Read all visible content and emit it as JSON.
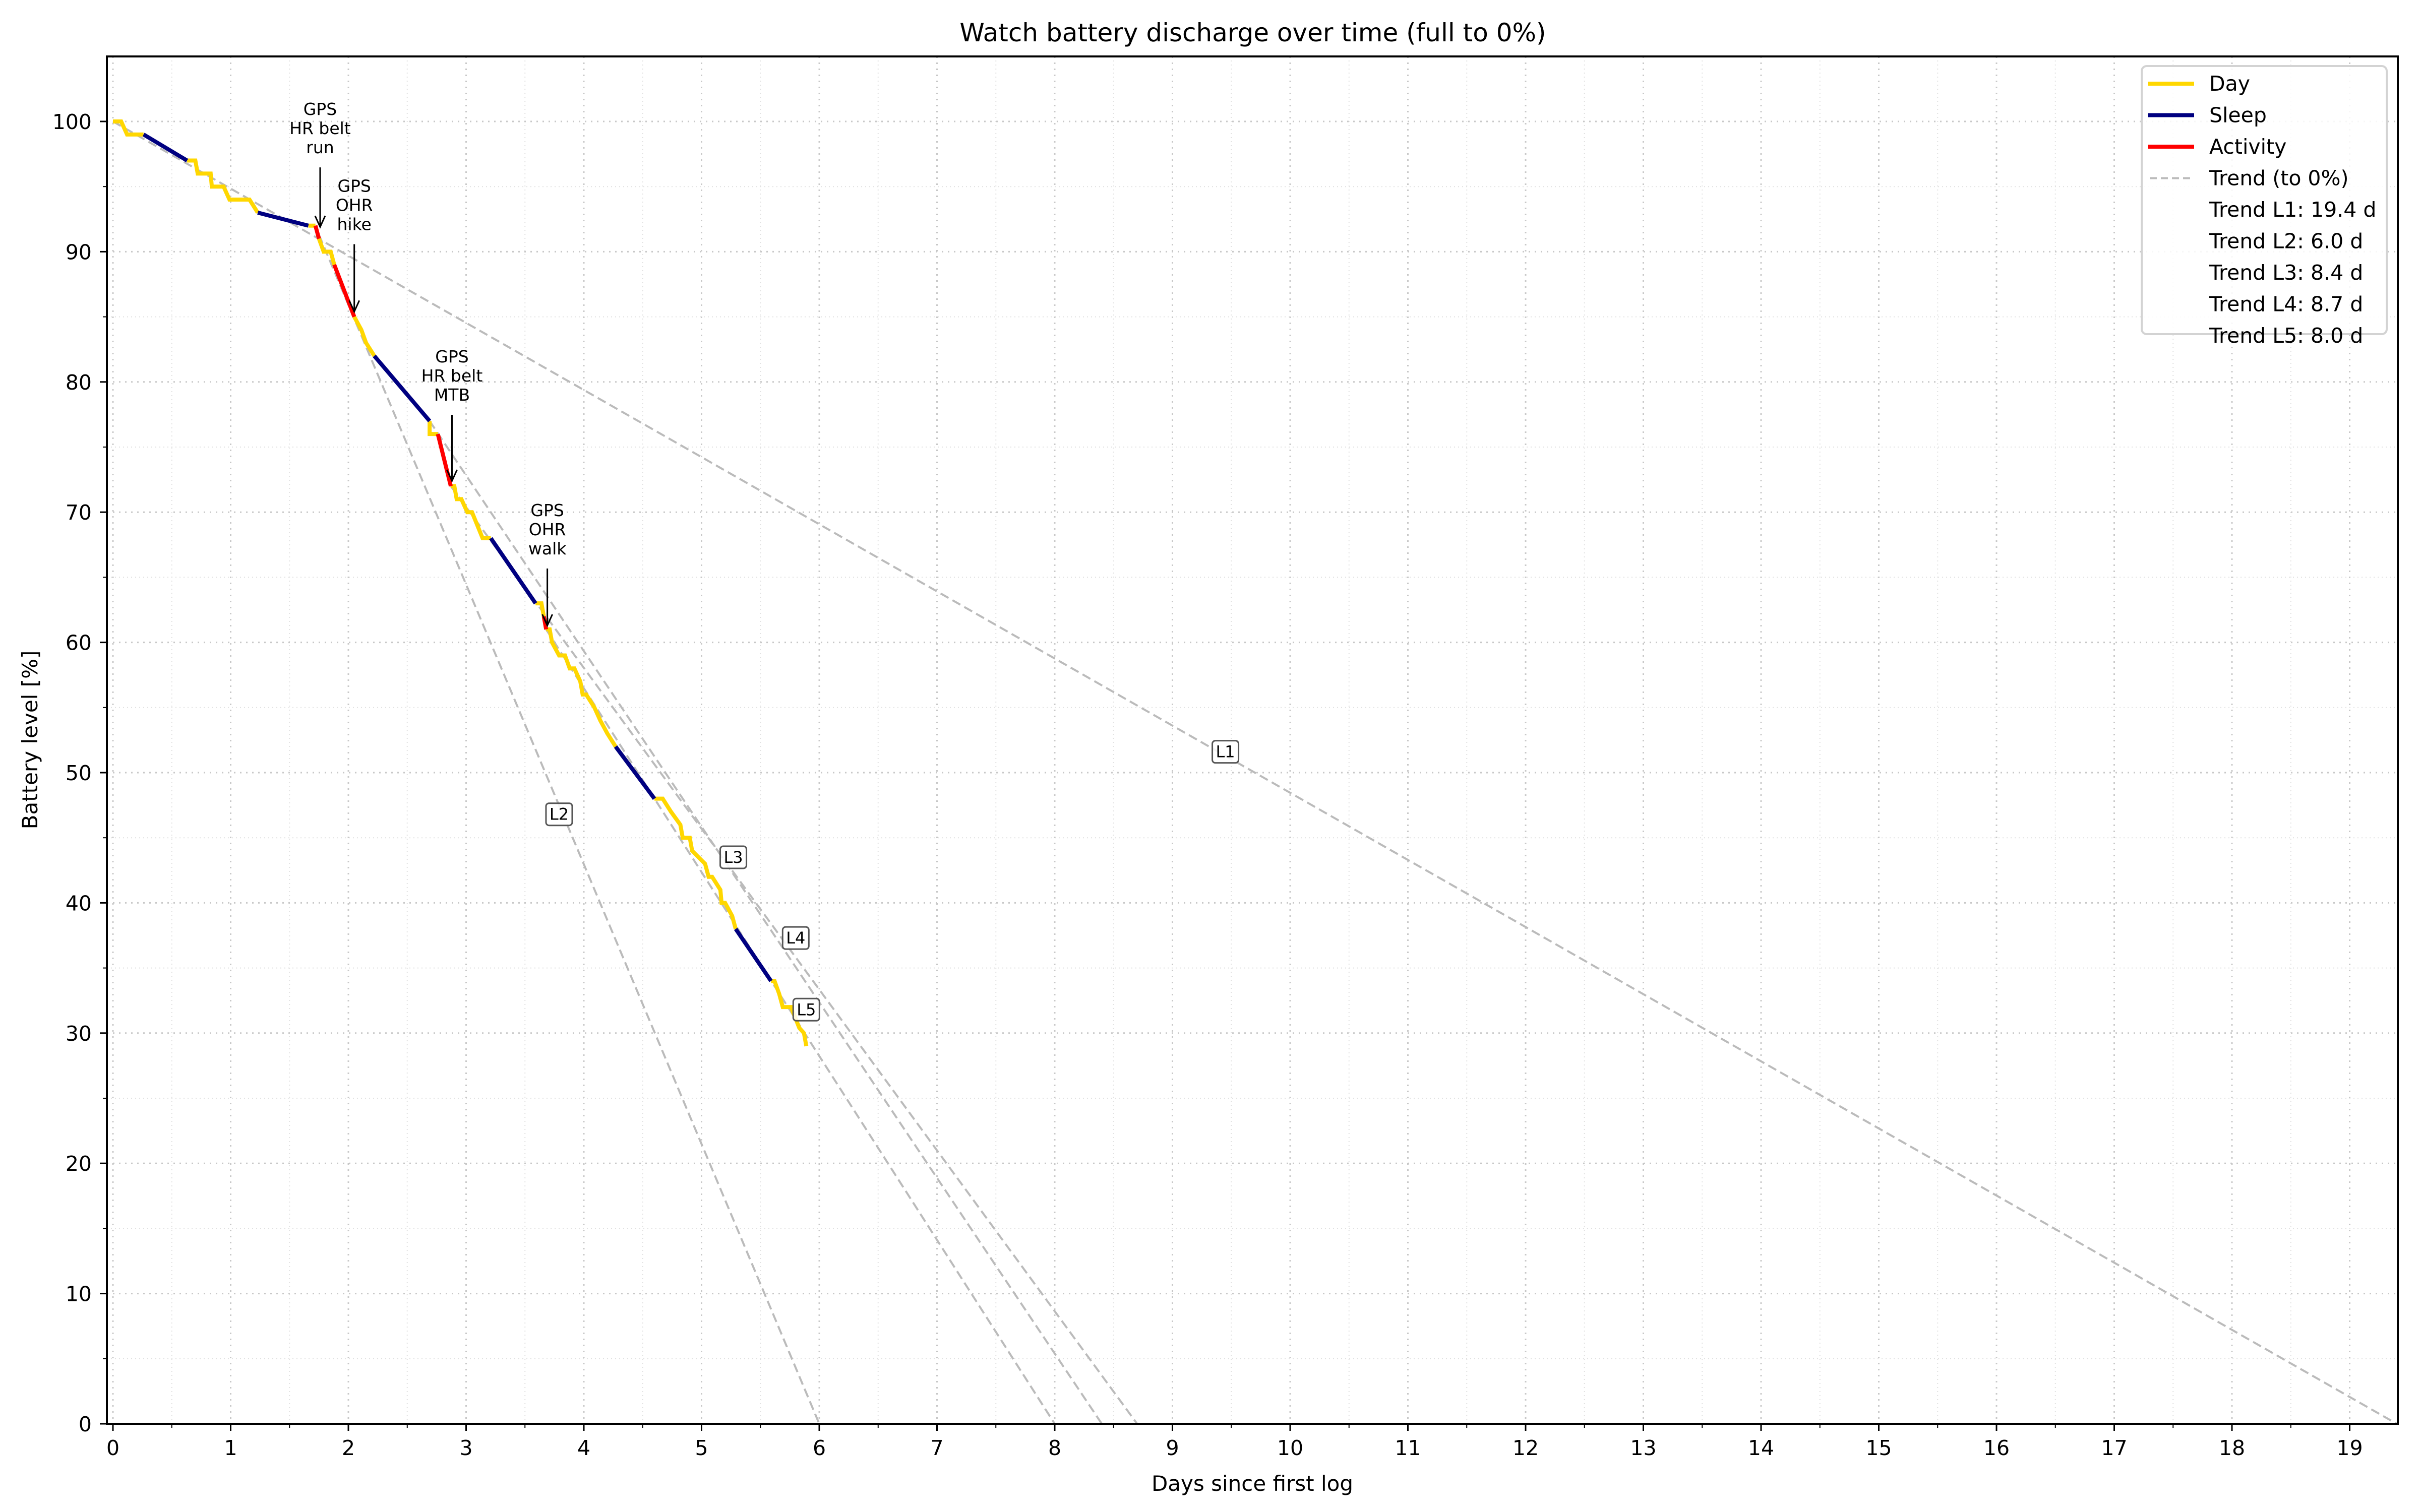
{
  "chart_data": {
    "type": "line",
    "title": "Watch battery discharge over time (full to 0%)",
    "xlabel": "Days since first log",
    "ylabel": "Battery level [%]",
    "xlim": [
      -0.05,
      19.45
    ],
    "ylim": [
      0,
      105
    ],
    "xticks": [
      0,
      1,
      2,
      3,
      4,
      5,
      6,
      7,
      8,
      9,
      10,
      11,
      12,
      13,
      14,
      15,
      16,
      17,
      18,
      19
    ],
    "yticks": [
      0,
      10,
      20,
      30,
      40,
      50,
      60,
      70,
      80,
      90,
      100
    ],
    "grid": {
      "major": true,
      "minor": true,
      "style": "dotted"
    },
    "legend_position": "upper right",
    "colors": {
      "Day": "#FFD700",
      "Sleep": "#000080",
      "Activity": "#FF0000",
      "Trend": "#BBBBBB"
    },
    "series": [
      {
        "name": "Day",
        "segments": [
          [
            [
              0,
              100
            ],
            [
              0.07,
              100
            ],
            [
              0.12,
              99
            ],
            [
              0.26,
              99
            ]
          ],
          [
            [
              0.63,
              97
            ],
            [
              0.7,
              97
            ],
            [
              0.72,
              96
            ],
            [
              0.83,
              96
            ],
            [
              0.84,
              95
            ],
            [
              0.94,
              95
            ],
            [
              0.99,
              94
            ],
            [
              1.16,
              94
            ],
            [
              1.23,
              93
            ]
          ],
          [
            [
              1.66,
              92
            ],
            [
              1.72,
              92
            ]
          ],
          [
            [
              1.75,
              91
            ],
            [
              1.79,
              90
            ],
            [
              1.85,
              90
            ],
            [
              1.88,
              89
            ]
          ],
          [
            [
              2.05,
              85
            ],
            [
              2.11,
              84
            ],
            [
              2.15,
              83
            ],
            [
              2.22,
              82
            ]
          ],
          [
            [
              2.69,
              77
            ],
            [
              2.69,
              76
            ],
            [
              2.76,
              76
            ]
          ],
          [
            [
              2.87,
              72
            ],
            [
              2.9,
              72
            ],
            [
              2.92,
              71
            ],
            [
              2.96,
              71
            ],
            [
              3.01,
              70
            ],
            [
              3.05,
              70
            ],
            [
              3.14,
              68
            ],
            [
              3.21,
              68
            ]
          ],
          [
            [
              3.59,
              63
            ],
            [
              3.64,
              63
            ],
            [
              3.66,
              62
            ]
          ],
          [
            [
              3.68,
              61
            ],
            [
              3.71,
              61
            ],
            [
              3.73,
              60
            ],
            [
              3.79,
              59
            ],
            [
              3.84,
              59
            ],
            [
              3.88,
              58
            ],
            [
              3.92,
              58
            ],
            [
              3.97,
              57
            ],
            [
              3.99,
              56
            ],
            [
              4.02,
              56
            ],
            [
              4.09,
              55
            ],
            [
              4.14,
              54
            ],
            [
              4.2,
              53
            ],
            [
              4.27,
              52
            ]
          ],
          [
            [
              4.6,
              48
            ],
            [
              4.67,
              48
            ],
            [
              4.74,
              47
            ],
            [
              4.82,
              46
            ],
            [
              4.84,
              45
            ],
            [
              4.9,
              45
            ],
            [
              4.92,
              44
            ],
            [
              5.03,
              43
            ],
            [
              5.06,
              42
            ],
            [
              5.09,
              42
            ],
            [
              5.16,
              41
            ],
            [
              5.17,
              40
            ],
            [
              5.2,
              40
            ],
            [
              5.26,
              39
            ],
            [
              5.29,
              38
            ]
          ],
          [
            [
              5.59,
              34
            ],
            [
              5.62,
              34
            ],
            [
              5.66,
              33
            ],
            [
              5.69,
              32
            ],
            [
              5.76,
              32
            ],
            [
              5.83,
              30.4
            ],
            [
              5.87,
              30
            ],
            [
              5.89,
              29
            ]
          ]
        ]
      },
      {
        "name": "Sleep",
        "segments": [
          [
            [
              0.26,
              99
            ],
            [
              0.63,
              97
            ]
          ],
          [
            [
              1.23,
              93
            ],
            [
              1.66,
              92
            ]
          ],
          [
            [
              2.22,
              82
            ],
            [
              2.69,
              77
            ]
          ],
          [
            [
              3.21,
              68
            ],
            [
              3.59,
              63
            ]
          ],
          [
            [
              4.27,
              52
            ],
            [
              4.6,
              48
            ]
          ],
          [
            [
              5.29,
              38
            ],
            [
              5.59,
              34
            ]
          ]
        ]
      },
      {
        "name": "Activity",
        "segments": [
          [
            [
              1.72,
              92
            ],
            [
              1.75,
              91
            ]
          ],
          [
            [
              1.88,
              89
            ],
            [
              2.05,
              85
            ]
          ],
          [
            [
              2.76,
              76
            ],
            [
              2.87,
              72
            ]
          ],
          [
            [
              3.66,
              62
            ],
            [
              3.68,
              61
            ]
          ]
        ]
      }
    ],
    "trends": [
      {
        "id": "L1",
        "start": [
          0,
          100
        ],
        "end_day": 19.4,
        "label_pos": [
          9.45,
          51.6
        ]
      },
      {
        "id": "L2",
        "start": [
          1.75,
          91.3
        ],
        "end_day": 6.0,
        "label_pos": [
          3.79,
          46.8
        ]
      },
      {
        "id": "L3",
        "start": [
          2.69,
          77
        ],
        "end_day": 8.4,
        "label_pos": [
          5.27,
          43.5
        ]
      },
      {
        "id": "L4",
        "start": [
          2.87,
          72
        ],
        "end_day": 8.7,
        "label_pos": [
          5.8,
          37.3
        ]
      },
      {
        "id": "L5",
        "start": [
          3.68,
          61
        ],
        "end_day": 8.0,
        "label_pos": [
          5.89,
          31.8
        ]
      }
    ],
    "annotations": [
      {
        "lines": [
          "GPS",
          "HR belt",
          "run"
        ],
        "text_at": [
          1.76,
          100.5
        ],
        "arrow_to": [
          1.76,
          91.9
        ]
      },
      {
        "lines": [
          "GPS",
          "OHR",
          "hike"
        ],
        "text_at": [
          2.05,
          94.6
        ],
        "arrow_to": [
          2.05,
          85.4
        ]
      },
      {
        "lines": [
          "GPS",
          "HR belt",
          "MTB"
        ],
        "text_at": [
          2.88,
          81.5
        ],
        "arrow_to": [
          2.88,
          72.4
        ]
      },
      {
        "lines": [
          "GPS",
          "OHR",
          "walk"
        ],
        "text_at": [
          3.69,
          69.7
        ],
        "arrow_to": [
          3.69,
          61.3
        ]
      }
    ],
    "legend": [
      {
        "label": "Day",
        "style": "solid",
        "color": "#FFD700"
      },
      {
        "label": "Sleep",
        "style": "solid",
        "color": "#000080"
      },
      {
        "label": "Activity",
        "style": "solid",
        "color": "#FF0000"
      },
      {
        "label": "Trend (to 0%)",
        "style": "dashed",
        "color": "#BBBBBB"
      },
      {
        "label": "Trend L1: 19.4 d",
        "style": "none"
      },
      {
        "label": "Trend L2: 6.0 d",
        "style": "none"
      },
      {
        "label": "Trend L3: 8.4 d",
        "style": "none"
      },
      {
        "label": "Trend L4: 8.7 d",
        "style": "none"
      },
      {
        "label": "Trend L5: 8.0 d",
        "style": "none"
      }
    ]
  }
}
